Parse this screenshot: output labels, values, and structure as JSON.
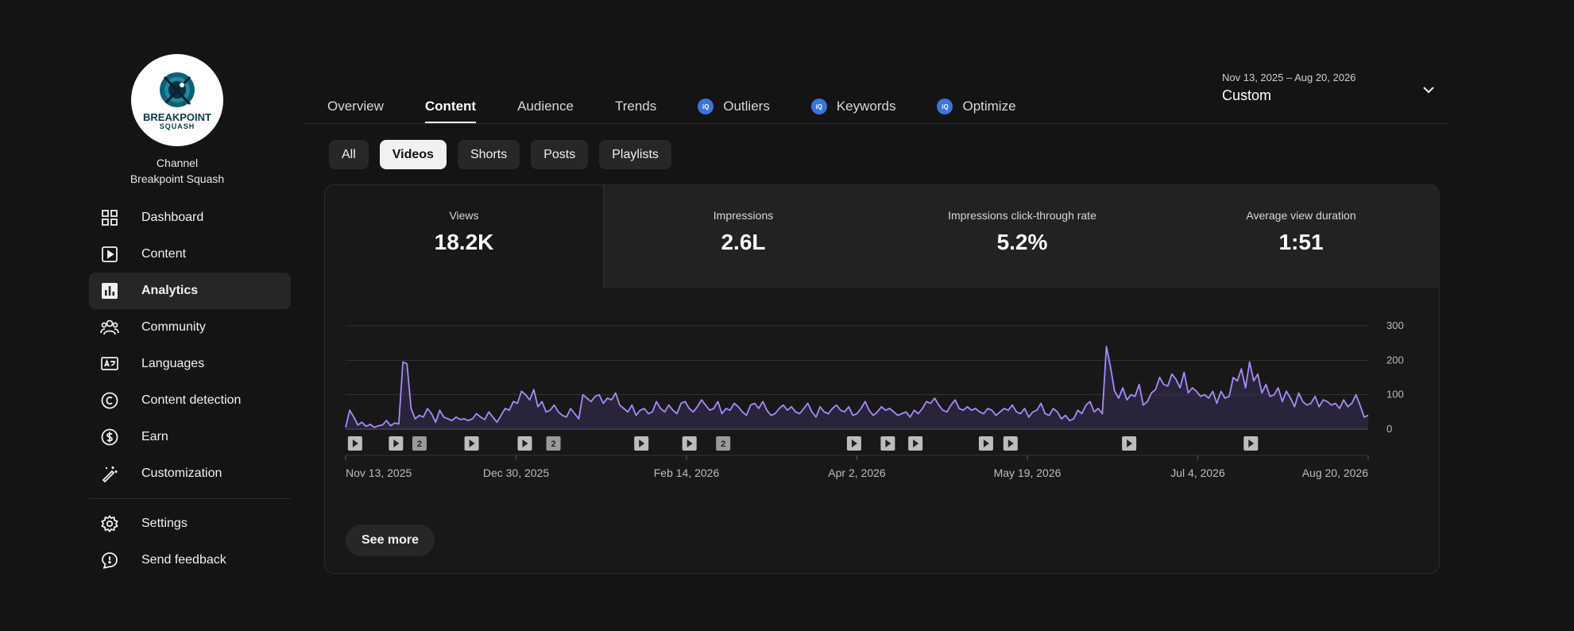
{
  "channel": {
    "label": "Channel",
    "name": "Breakpoint Squash",
    "logo_text": "BREAKPOINT",
    "logo_sub": "SQUASH"
  },
  "sidebar": {
    "items": [
      {
        "label": "Dashboard",
        "icon": "dashboard-icon"
      },
      {
        "label": "Content",
        "icon": "content-icon"
      },
      {
        "label": "Analytics",
        "icon": "analytics-icon",
        "active": true
      },
      {
        "label": "Community",
        "icon": "community-icon"
      },
      {
        "label": "Languages",
        "icon": "languages-icon"
      },
      {
        "label": "Content detection",
        "icon": "copyright-icon"
      },
      {
        "label": "Earn",
        "icon": "dollar-icon"
      },
      {
        "label": "Customization",
        "icon": "wand-icon"
      }
    ],
    "footer": [
      {
        "label": "Settings",
        "icon": "gear-icon"
      },
      {
        "label": "Send feedback",
        "icon": "feedback-icon"
      }
    ]
  },
  "tabs": [
    {
      "label": "Overview"
    },
    {
      "label": "Content",
      "active": true
    },
    {
      "label": "Audience"
    },
    {
      "label": "Trends"
    },
    {
      "label": "Outliers",
      "badge": "iQ"
    },
    {
      "label": "Keywords",
      "badge": "iQ"
    },
    {
      "label": "Optimize",
      "badge": "iQ"
    }
  ],
  "date": {
    "range": "Nov 13, 2025 – Aug 20, 2026",
    "mode": "Custom"
  },
  "chips": [
    {
      "label": "All"
    },
    {
      "label": "Videos",
      "active": true
    },
    {
      "label": "Shorts"
    },
    {
      "label": "Posts"
    },
    {
      "label": "Playlists"
    }
  ],
  "metrics": [
    {
      "label": "Views",
      "value": "18.2K",
      "active": true
    },
    {
      "label": "Impressions",
      "value": "2.6L"
    },
    {
      "label": "Impressions click-through rate",
      "value": "5.2%"
    },
    {
      "label": "Average view duration",
      "value": "1:51"
    }
  ],
  "see_more": "See more",
  "colors": {
    "accent_line": "#a78bfa",
    "accent_fill": "#3a2f5a",
    "badge": "#3b73e0"
  },
  "chart_data": {
    "type": "area",
    "x_ticks": [
      "Nov 13, 2025",
      "Dec 30, 2025",
      "Feb 14, 2026",
      "Apr 2, 2026",
      "May 19, 2026",
      "Jul 4, 2026",
      "Aug 20, 2026"
    ],
    "y_ticks": [
      "0",
      "100",
      "200",
      "300"
    ],
    "ylim": [
      0,
      300
    ],
    "grid": true,
    "values": [
      5,
      55,
      35,
      12,
      20,
      8,
      14,
      5,
      10,
      12,
      25,
      10,
      18,
      15,
      195,
      190,
      60,
      30,
      40,
      35,
      60,
      45,
      20,
      55,
      35,
      30,
      25,
      35,
      28,
      30,
      25,
      30,
      45,
      35,
      28,
      50,
      35,
      20,
      40,
      60,
      55,
      80,
      75,
      110,
      100,
      85,
      115,
      65,
      80,
      50,
      55,
      70,
      50,
      40,
      35,
      60,
      45,
      30,
      100,
      90,
      80,
      95,
      100,
      75,
      90,
      85,
      105,
      70,
      60,
      50,
      70,
      40,
      55,
      60,
      45,
      50,
      80,
      60,
      50,
      70,
      55,
      45,
      75,
      80,
      60,
      50,
      65,
      85,
      70,
      55,
      60,
      80,
      45,
      60,
      55,
      75,
      65,
      50,
      40,
      70,
      75,
      60,
      80,
      55,
      40,
      45,
      60,
      70,
      55,
      65,
      50,
      45,
      60,
      75,
      50,
      35,
      65,
      50,
      45,
      60,
      70,
      55,
      50,
      65,
      40,
      45,
      60,
      80,
      55,
      40,
      50,
      65,
      55,
      60,
      50,
      40,
      45,
      50,
      35,
      55,
      45,
      60,
      80,
      75,
      90,
      70,
      55,
      50,
      70,
      85,
      60,
      55,
      65,
      55,
      60,
      50,
      45,
      60,
      55,
      40,
      50,
      60,
      55,
      70,
      50,
      45,
      60,
      35,
      50,
      55,
      75,
      45,
      40,
      60,
      50,
      30,
      40,
      25,
      30,
      55,
      45,
      70,
      80,
      50,
      60,
      45,
      240,
      180,
      110,
      90,
      120,
      85,
      100,
      95,
      130,
      70,
      80,
      105,
      115,
      150,
      130,
      125,
      160,
      145,
      120,
      165,
      105,
      120,
      110,
      95,
      100,
      90,
      110,
      75,
      110,
      90,
      95,
      150,
      140,
      175,
      120,
      195,
      140,
      160,
      105,
      130,
      95,
      100,
      120,
      80,
      110,
      90,
      65,
      105,
      80,
      70,
      75,
      95,
      65,
      85,
      80,
      70,
      75,
      60,
      85,
      65,
      75,
      100,
      70,
      35,
      40
    ],
    "markers": [
      {
        "x": 0.003,
        "label": ""
      },
      {
        "x": 0.043,
        "label": ""
      },
      {
        "x": 0.066,
        "label": "2"
      },
      {
        "x": 0.117,
        "label": ""
      },
      {
        "x": 0.169,
        "label": ""
      },
      {
        "x": 0.197,
        "label": "2"
      },
      {
        "x": 0.283,
        "label": ""
      },
      {
        "x": 0.33,
        "label": ""
      },
      {
        "x": 0.363,
        "label": "2"
      },
      {
        "x": 0.491,
        "label": ""
      },
      {
        "x": 0.524,
        "label": ""
      },
      {
        "x": 0.551,
        "label": ""
      },
      {
        "x": 0.62,
        "label": ""
      },
      {
        "x": 0.644,
        "label": ""
      },
      {
        "x": 0.76,
        "label": ""
      },
      {
        "x": 0.879,
        "label": ""
      }
    ]
  }
}
